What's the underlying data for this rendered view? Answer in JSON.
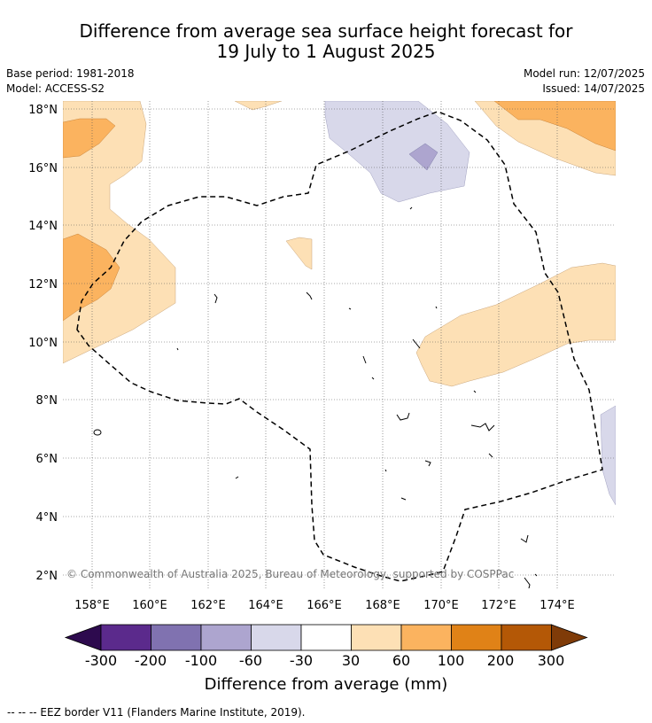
{
  "title": {
    "line1": "Difference from average sea surface height forecast for",
    "line2": "19 July to 1 August 2025"
  },
  "meta": {
    "base_period": "Base period: 1981-2018",
    "model": "Model: ACCESS-S2",
    "model_run": "Model run: 12/07/2025",
    "issued": "Issued: 14/07/2025"
  },
  "map": {
    "lat_labels": [
      "18°N",
      "16°N",
      "14°N",
      "12°N",
      "10°N",
      "8°N",
      "6°N",
      "4°N",
      "2°N"
    ],
    "lon_labels": [
      "158°E",
      "160°E",
      "162°E",
      "164°E",
      "166°E",
      "168°E",
      "170°E",
      "172°E",
      "174°E"
    ],
    "copyright": "© Commonwealth of Australia 2025, Bureau of Meteorology, supported by COSPPac"
  },
  "colorbar": {
    "labels": [
      "-300",
      "-200",
      "-100",
      "-60",
      "-30",
      "30",
      "60",
      "100",
      "200",
      "300"
    ],
    "colors": [
      "#2d0a4e",
      "#5b2a8c",
      "#8072b0",
      "#ada5cf",
      "#d8d8ea",
      "#ffffff",
      "#fde0b5",
      "#fbb35f",
      "#e08217",
      "#b45806",
      "#7f3b08"
    ],
    "title": "Difference from average (mm)"
  },
  "footer": "-- -- -- EEZ border V11 (Flanders Marine Institute, 2019)."
}
